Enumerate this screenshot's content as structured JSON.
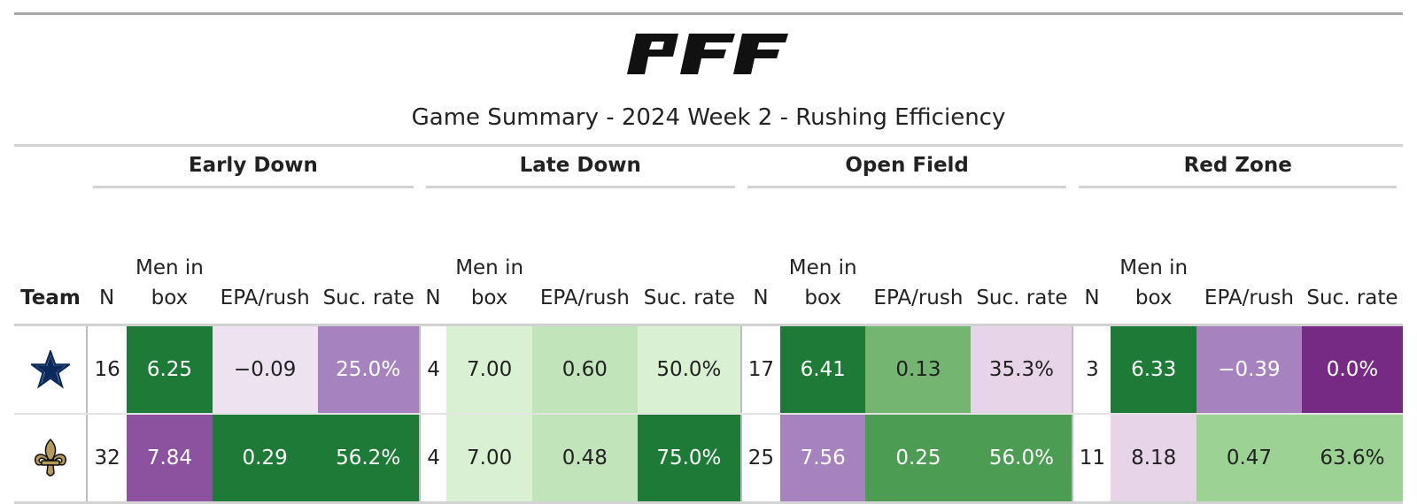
{
  "brand": {
    "logo_text": "PFF",
    "logo_color": "#111111"
  },
  "title": "Game Summary - 2024 Week 2 - Rushing Efficiency",
  "groups": [
    "Early Down",
    "Late Down",
    "Open Field",
    "Red Zone"
  ],
  "columns": {
    "team": "Team",
    "n": "N",
    "men_in_box_line1": "Men in",
    "men_in_box_line2": "box",
    "epa": "EPA/rush",
    "suc": "Suc. rate"
  },
  "rows": [
    {
      "team_icon": "cowboys-star-icon",
      "team_color": "#0b2a5b",
      "early": {
        "n": "16",
        "box": "6.25",
        "epa": "−0.09",
        "suc": "25.0%"
      },
      "late": {
        "n": "4",
        "box": "7.00",
        "epa": "0.60",
        "suc": "50.0%"
      },
      "open": {
        "n": "17",
        "box": "6.41",
        "epa": "0.13",
        "suc": "35.3%"
      },
      "red": {
        "n": "3",
        "box": "6.33",
        "epa": "−0.39",
        "suc": "0.0%"
      }
    },
    {
      "team_icon": "saints-fleur-de-lis-icon",
      "team_color": "#b5995a",
      "early": {
        "n": "32",
        "box": "7.84",
        "epa": "0.29",
        "suc": "56.2%"
      },
      "late": {
        "n": "4",
        "box": "7.00",
        "epa": "0.48",
        "suc": "75.0%"
      },
      "open": {
        "n": "25",
        "box": "7.56",
        "epa": "0.25",
        "suc": "56.0%"
      },
      "red": {
        "n": "11",
        "box": "8.18",
        "epa": "0.47",
        "suc": "63.6%"
      }
    }
  ],
  "cell_colors": {
    "dark_green": "#1e7b37",
    "green": "#4c9c53",
    "mid_green": "#74b671",
    "light_green": "#9cd394",
    "pale_green": "#c1e4bb",
    "very_pale_green": "#d9f0d3",
    "very_pale_purple": "#ece2f0",
    "pale_purple": "#e7d4e8",
    "light_purple": "#a682be",
    "purple": "#8c52a0",
    "dark_purple": "#762a83"
  }
}
